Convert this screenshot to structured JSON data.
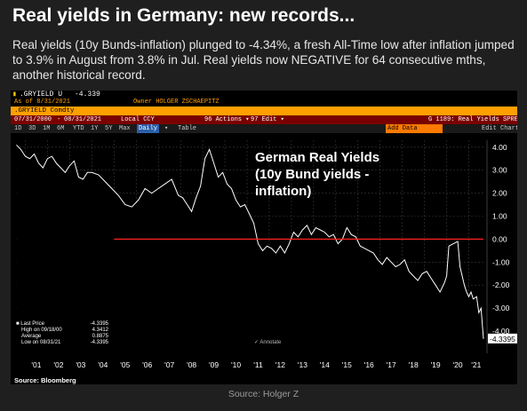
{
  "headline": "Real yields in Germany: new records...",
  "subtitle": "Real yields (10y Bunds-inflation) plunged to -4.34%, a fresh All-Time low after inflation jumped to 3.9% in August from 3.8% in Jul. Real yields now NEGATIVE for 64 consecutive mths, another historical record.",
  "terminal": {
    "ticker_line": ".GRYIELD U",
    "ticker_value": "-4.339",
    "asof": "As of 8/31/2021",
    "owner": "Owner HOLGER ZSCHAEPITZ",
    "security": ".GRYIELD Comdty",
    "actions": "96 Actions ▾",
    "edit": "97 Edit ▾",
    "function": "G 1189: Real Yields SPREAD",
    "date_from": "07/31/2000",
    "date_to": "08/31/2021",
    "currency": "Local CCY",
    "periods": [
      "1D",
      "3D",
      "1M",
      "6M",
      "YTD",
      "1Y",
      "5Y",
      "Max"
    ],
    "frequency": "Daily",
    "table_label": "Table",
    "field_label": "Add Data",
    "edit_chart": "Edit Chart",
    "annotate": "Annotate"
  },
  "chart_data": {
    "type": "line",
    "title": "German Real Yields (10y Bund yields - inflation)",
    "x_ticks": [
      "'01",
      "'02",
      "'03",
      "'04",
      "'05",
      "'06",
      "'07",
      "'08",
      "'09",
      "'10",
      "'11",
      "'12",
      "'13",
      "'14",
      "'15",
      "'16",
      "'17",
      "'18",
      "'19",
      "'20",
      "'21"
    ],
    "y_ticks": [
      "4.00",
      "3.00",
      "2.00",
      "1.00",
      "0.00",
      "-1.00",
      "-2.00",
      "-3.00",
      "-4.00"
    ],
    "ylim": [
      -4.5,
      4.3
    ],
    "xlim": [
      2000.58,
      2021.66
    ],
    "reference_line": 0,
    "last_label": "-4.3395",
    "series": [
      {
        "points": [
          [
            2000.6,
            4.1
          ],
          [
            2000.8,
            3.9
          ],
          [
            2001.0,
            3.6
          ],
          [
            2001.2,
            3.5
          ],
          [
            2001.4,
            3.7
          ],
          [
            2001.6,
            3.3
          ],
          [
            2001.8,
            3.1
          ],
          [
            2002.0,
            3.5
          ],
          [
            2002.2,
            3.6
          ],
          [
            2002.4,
            3.3
          ],
          [
            2002.6,
            3.1
          ],
          [
            2002.8,
            2.9
          ],
          [
            2003.0,
            3.2
          ],
          [
            2003.2,
            3.4
          ],
          [
            2003.4,
            2.7
          ],
          [
            2003.6,
            2.6
          ],
          [
            2003.8,
            2.9
          ],
          [
            2004.0,
            2.9
          ],
          [
            2004.3,
            2.8
          ],
          [
            2004.6,
            2.5
          ],
          [
            2004.9,
            2.2
          ],
          [
            2005.2,
            1.9
          ],
          [
            2005.5,
            1.5
          ],
          [
            2005.8,
            1.4
          ],
          [
            2006.1,
            1.7
          ],
          [
            2006.4,
            2.2
          ],
          [
            2006.7,
            2.0
          ],
          [
            2007.0,
            2.2
          ],
          [
            2007.3,
            2.4
          ],
          [
            2007.6,
            2.6
          ],
          [
            2007.9,
            1.9
          ],
          [
            2008.1,
            1.8
          ],
          [
            2008.3,
            1.5
          ],
          [
            2008.5,
            1.2
          ],
          [
            2008.7,
            1.8
          ],
          [
            2008.9,
            2.3
          ],
          [
            2009.1,
            3.5
          ],
          [
            2009.3,
            3.9
          ],
          [
            2009.5,
            3.3
          ],
          [
            2009.7,
            2.7
          ],
          [
            2009.9,
            2.9
          ],
          [
            2010.1,
            2.4
          ],
          [
            2010.3,
            2.2
          ],
          [
            2010.5,
            1.7
          ],
          [
            2010.7,
            1.4
          ],
          [
            2010.9,
            1.5
          ],
          [
            2011.1,
            1.1
          ],
          [
            2011.3,
            0.7
          ],
          [
            2011.5,
            -0.2
          ],
          [
            2011.7,
            -0.5
          ],
          [
            2011.9,
            -0.3
          ],
          [
            2012.1,
            -0.4
          ],
          [
            2012.3,
            -0.6
          ],
          [
            2012.5,
            -0.3
          ],
          [
            2012.7,
            -0.6
          ],
          [
            2012.9,
            -0.2
          ],
          [
            2013.1,
            0.3
          ],
          [
            2013.3,
            0.1
          ],
          [
            2013.5,
            0.4
          ],
          [
            2013.7,
            0.6
          ],
          [
            2013.9,
            0.2
          ],
          [
            2014.1,
            0.5
          ],
          [
            2014.3,
            0.4
          ],
          [
            2014.5,
            0.3
          ],
          [
            2014.7,
            0.1
          ],
          [
            2014.9,
            0.2
          ],
          [
            2015.1,
            -0.2
          ],
          [
            2015.3,
            0.0
          ],
          [
            2015.5,
            0.5
          ],
          [
            2015.7,
            0.2
          ],
          [
            2015.9,
            0.1
          ],
          [
            2016.1,
            -0.3
          ],
          [
            2016.3,
            -0.4
          ],
          [
            2016.5,
            -0.5
          ],
          [
            2016.7,
            -0.6
          ],
          [
            2016.9,
            -0.9
          ],
          [
            2017.1,
            -1.1
          ],
          [
            2017.3,
            -0.8
          ],
          [
            2017.5,
            -1.0
          ],
          [
            2017.7,
            -1.2
          ],
          [
            2017.9,
            -1.1
          ],
          [
            2018.1,
            -0.9
          ],
          [
            2018.3,
            -1.4
          ],
          [
            2018.5,
            -1.6
          ],
          [
            2018.7,
            -1.8
          ],
          [
            2018.9,
            -1.5
          ],
          [
            2019.1,
            -1.4
          ],
          [
            2019.3,
            -1.7
          ],
          [
            2019.5,
            -2.0
          ],
          [
            2019.7,
            -2.3
          ],
          [
            2019.9,
            -1.9
          ],
          [
            2020.0,
            -1.6
          ],
          [
            2020.1,
            -0.3
          ],
          [
            2020.3,
            -0.2
          ],
          [
            2020.5,
            -0.1
          ],
          [
            2020.6,
            -1.2
          ],
          [
            2020.8,
            -2.0
          ],
          [
            2020.9,
            -2.3
          ],
          [
            2021.0,
            -2.5
          ],
          [
            2021.1,
            -2.3
          ],
          [
            2021.2,
            -2.6
          ],
          [
            2021.35,
            -2.5
          ],
          [
            2021.45,
            -3.2
          ],
          [
            2021.55,
            -3.0
          ],
          [
            2021.66,
            -4.3395
          ]
        ]
      }
    ]
  },
  "legend": {
    "last_price_label": "Last Price",
    "last_price_value": "-4.3395",
    "high_label": "High on 09/18/00",
    "high_value": "4.3412",
    "average_label": "Average",
    "average_value": "0.8875",
    "low_label": "Low on 08/31/21",
    "low_value": "-4.3395"
  },
  "footnote": "Source: Bloomberg",
  "source": "Source: Holger Z",
  "colors": {
    "line": "#ffffff",
    "area_fill": "#000000",
    "reference": "#ff2020",
    "amber": "#ffa000",
    "header_red": "#7a0000"
  }
}
